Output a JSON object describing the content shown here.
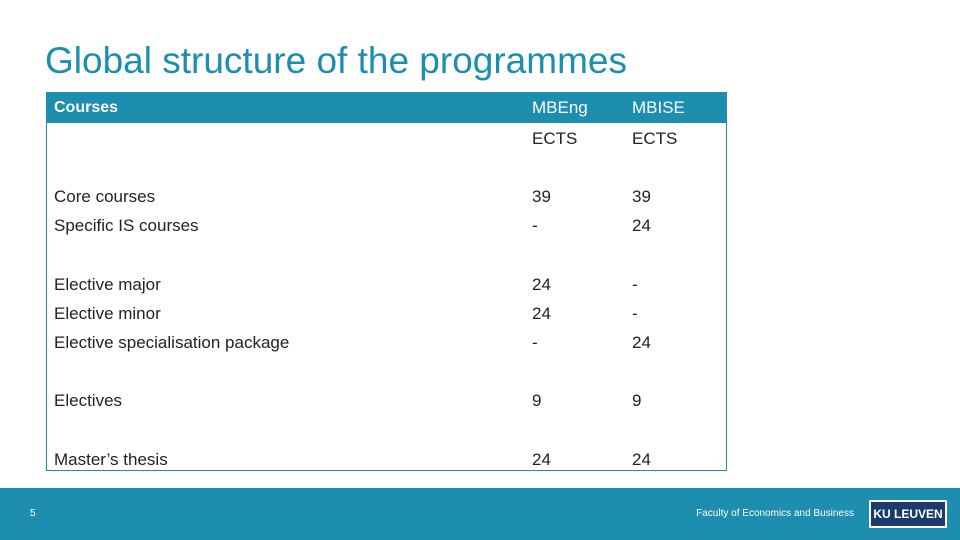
{
  "slide": {
    "title": "Global structure of the programmes",
    "page_number": "5",
    "footer_text": "Faculty of Economics and Business",
    "logo_text": "KU LEUVEN"
  },
  "table": {
    "headers": [
      "Courses",
      "MBEng",
      "MBISE"
    ],
    "subheaders": [
      "",
      "ECTS",
      "ECTS"
    ],
    "rows": [
      [
        "Core courses",
        "39",
        "39"
      ],
      [
        "Specific IS courses",
        "-",
        "24"
      ],
      [
        "Elective major",
        "24",
        "-"
      ],
      [
        "Elective minor",
        "24",
        "-"
      ],
      [
        "Elective specialisation package",
        "-",
        "24"
      ],
      [
        "Electives",
        "9",
        "9"
      ],
      [
        "Master’s thesis",
        "24",
        "24"
      ]
    ]
  }
}
